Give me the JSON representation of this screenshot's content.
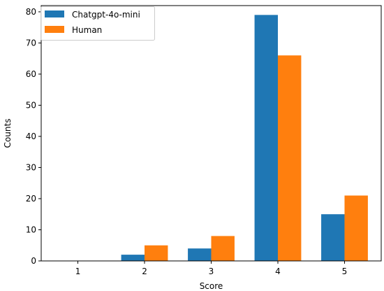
{
  "chart_data": {
    "type": "bar",
    "xlabel": "Score",
    "ylabel": "Counts",
    "categories": [
      "1",
      "2",
      "3",
      "4",
      "5"
    ],
    "ylim": [
      0,
      82
    ],
    "yticks": [
      0,
      10,
      20,
      30,
      40,
      50,
      60,
      70,
      80
    ],
    "grid": false,
    "legend_position": "top-left",
    "series": [
      {
        "name": "Chatgpt-4o-mini",
        "color": "#1f77b4",
        "values": [
          0,
          2,
          4,
          79,
          15
        ]
      },
      {
        "name": "Human",
        "color": "#ff7f0e",
        "values": [
          0,
          5,
          8,
          66,
          21
        ]
      }
    ]
  }
}
